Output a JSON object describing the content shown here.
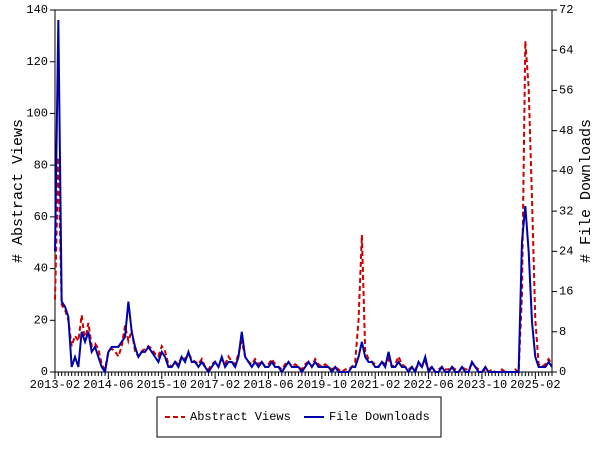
{
  "chart_data": {
    "type": "line",
    "y_label": "# Abstract Views",
    "y2_label": "# File Downloads",
    "categories": [
      "2013-02",
      null,
      null,
      null,
      null,
      null,
      null,
      null,
      null,
      null,
      null,
      null,
      null,
      null,
      null,
      null,
      "2014-06",
      null,
      null,
      null,
      null,
      null,
      null,
      null,
      null,
      null,
      null,
      null,
      null,
      null,
      null,
      null,
      "2015-10",
      null,
      null,
      null,
      null,
      null,
      null,
      null,
      null,
      null,
      null,
      null,
      null,
      null,
      null,
      null,
      "2017-02",
      null,
      null,
      null,
      null,
      null,
      null,
      null,
      null,
      null,
      null,
      null,
      null,
      null,
      null,
      null,
      "2018-06",
      null,
      null,
      null,
      null,
      null,
      null,
      null,
      null,
      null,
      null,
      null,
      null,
      null,
      null,
      null,
      "2019-10",
      null,
      null,
      null,
      null,
      null,
      null,
      null,
      null,
      null,
      null,
      null,
      null,
      null,
      null,
      null,
      "2021-02",
      null,
      null,
      null,
      null,
      null,
      null,
      null,
      null,
      null,
      null,
      null,
      null,
      null,
      null,
      null,
      "2022-06",
      null,
      null,
      null,
      null,
      null,
      null,
      null,
      null,
      null,
      null,
      null,
      null,
      null,
      null,
      null,
      "2023-10",
      null,
      null,
      null,
      null,
      null,
      null,
      null,
      null,
      null,
      null,
      null,
      null,
      null,
      null,
      null,
      "2025-02",
      null,
      null,
      null,
      null,
      null
    ],
    "series": [
      {
        "name": "Abstract Views",
        "color": "#cc0000",
        "dashed": true,
        "axis": "y",
        "values": [
          28,
          83,
          26,
          24,
          20,
          10,
          14,
          12,
          22,
          12,
          19,
          10,
          11,
          9,
          3,
          1,
          8,
          9,
          8,
          6,
          10,
          18,
          12,
          16,
          8,
          6,
          8,
          9,
          10,
          9,
          7,
          6,
          10,
          8,
          3,
          2,
          4,
          3,
          6,
          5,
          7,
          5,
          4,
          3,
          5,
          2,
          1,
          3,
          4,
          2,
          5,
          3,
          6,
          4,
          3,
          7,
          12,
          6,
          4,
          3,
          5,
          3,
          4,
          2,
          3,
          5,
          3,
          2,
          1,
          3,
          4,
          2,
          3,
          2,
          1,
          3,
          4,
          2,
          5,
          3,
          2,
          3,
          2,
          1,
          2,
          1,
          0,
          1,
          1,
          2,
          4,
          20,
          53,
          8,
          5,
          4,
          3,
          2,
          4,
          3,
          5,
          2,
          3,
          6,
          3,
          2,
          1,
          2,
          1,
          3,
          2,
          4,
          1,
          2,
          0,
          1,
          2,
          1,
          1,
          2,
          1,
          0,
          2,
          1,
          1,
          3,
          2,
          1,
          0,
          1,
          0,
          1,
          0,
          0,
          1,
          0,
          0,
          0,
          1,
          0,
          30,
          128,
          110,
          67,
          20,
          3,
          2,
          3,
          5,
          3
        ]
      },
      {
        "name": "File Downloads",
        "color": "#0000aa",
        "dashed": false,
        "axis": "y2",
        "values": [
          24,
          70,
          14,
          13,
          11,
          1,
          3,
          1,
          8,
          6,
          8,
          4,
          5,
          3,
          1,
          0,
          4,
          5,
          5,
          5,
          6,
          7,
          14,
          8,
          5,
          3,
          4,
          4,
          5,
          4,
          3,
          2,
          4,
          3,
          1,
          1,
          2,
          1,
          3,
          2,
          4,
          2,
          2,
          1,
          2,
          1,
          0,
          1,
          2,
          1,
          3,
          1,
          2,
          2,
          1,
          3,
          8,
          3,
          2,
          1,
          2,
          1,
          2,
          1,
          1,
          2,
          1,
          1,
          0,
          1,
          2,
          1,
          1,
          1,
          0,
          1,
          2,
          1,
          2,
          1,
          1,
          1,
          1,
          0,
          1,
          0,
          0,
          0,
          0,
          1,
          1,
          3,
          6,
          3,
          2,
          2,
          1,
          1,
          2,
          1,
          4,
          1,
          1,
          2,
          1,
          1,
          0,
          1,
          0,
          2,
          1,
          3,
          0,
          1,
          0,
          0,
          1,
          0,
          0,
          1,
          0,
          0,
          1,
          0,
          0,
          2,
          1,
          0,
          0,
          1,
          0,
          0,
          0,
          0,
          0,
          0,
          0,
          0,
          0,
          0,
          26,
          33,
          24,
          10,
          3,
          1,
          1,
          1,
          2,
          1
        ]
      }
    ],
    "ylim": [
      0,
      140
    ],
    "yticks": [
      0,
      20,
      40,
      60,
      80,
      100,
      120,
      140
    ],
    "y2lim": [
      0,
      72
    ],
    "y2ticks": [
      0,
      8,
      16,
      24,
      32,
      40,
      48,
      56,
      64,
      72
    ],
    "legend": "bottom"
  }
}
